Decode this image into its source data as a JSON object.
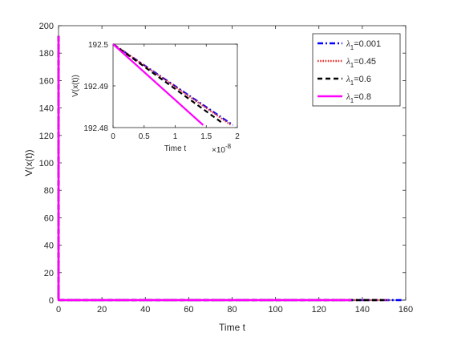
{
  "chart_data": [
    {
      "type": "line",
      "xlabel": "Time t",
      "ylabel": "V(x(t))",
      "xlim": [
        0,
        160
      ],
      "ylim": [
        0,
        200
      ],
      "xticks": [
        0,
        20,
        40,
        60,
        80,
        100,
        120,
        140,
        160
      ],
      "yticks": [
        0,
        20,
        40,
        60,
        80,
        100,
        120,
        140,
        160,
        180,
        200
      ],
      "legend": {
        "position": "top-right",
        "entries": [
          {
            "symbol": "λ",
            "sub": "1",
            "text": "=0.001",
            "color": "#0000FF",
            "style": "dashdot"
          },
          {
            "symbol": "λ",
            "sub": "1",
            "text": "=0.45",
            "color": "#E8312F",
            "style": "dotted"
          },
          {
            "symbol": "λ",
            "sub": "1",
            "text": "=0.6",
            "color": "#000000",
            "style": "dashed"
          },
          {
            "symbol": "λ",
            "sub": "1",
            "text": "=0.8",
            "color": "#FF00FF",
            "style": "solid"
          }
        ]
      },
      "series": [
        {
          "label": "λ1=0.001",
          "color": "#0000FF",
          "style": "dashdot",
          "x": [
            0,
            0.001,
            138,
            158
          ],
          "y": [
            192.5,
            0,
            0,
            0
          ]
        },
        {
          "label": "λ1=0.45",
          "color": "#E8312F",
          "style": "dotted",
          "x": [
            0,
            0.001,
            136,
            152
          ],
          "y": [
            192.5,
            0,
            0,
            0
          ]
        },
        {
          "label": "λ1=0.6",
          "color": "#000000",
          "style": "dashed",
          "x": [
            0,
            0.001,
            135,
            150
          ],
          "y": [
            192.5,
            0,
            0,
            0
          ]
        },
        {
          "label": "λ1=0.8",
          "color": "#FF00FF",
          "style": "solid",
          "x": [
            0,
            0.001,
            135
          ],
          "y": [
            192.5,
            0,
            0
          ]
        }
      ]
    },
    {
      "type": "line",
      "inset": true,
      "xlabel": "Time t",
      "ylabel": "V(x(t))",
      "x_exponent_label": "×10",
      "x_exponent": "-8",
      "xlim": [
        0,
        2
      ],
      "ylim": [
        192.48,
        192.5
      ],
      "xticks": [
        0,
        0.5,
        1,
        1.5,
        2
      ],
      "xtick_labels": [
        "0",
        "0.5",
        "1",
        "1.5",
        "2"
      ],
      "yticks": [
        192.48,
        192.49,
        192.5
      ],
      "ytick_labels": [
        "192.48",
        "192.49",
        "192.5"
      ],
      "series": [
        {
          "label": "λ1=0.001",
          "color": "#0000FF",
          "style": "dashdot",
          "x": [
            0,
            1.93
          ],
          "y": [
            192.5,
            192.4806
          ]
        },
        {
          "label": "λ1=0.45",
          "color": "#E8312F",
          "style": "dotted",
          "x": [
            0,
            1.9
          ],
          "y": [
            192.5,
            192.4806
          ]
        },
        {
          "label": "λ1=0.6",
          "color": "#000000",
          "style": "dashed",
          "x": [
            0,
            1.75
          ],
          "y": [
            192.5,
            192.4812
          ]
        },
        {
          "label": "λ1=0.8",
          "color": "#FF00FF",
          "style": "solid",
          "x": [
            0,
            1.45
          ],
          "y": [
            192.5,
            192.4806
          ]
        }
      ]
    }
  ]
}
